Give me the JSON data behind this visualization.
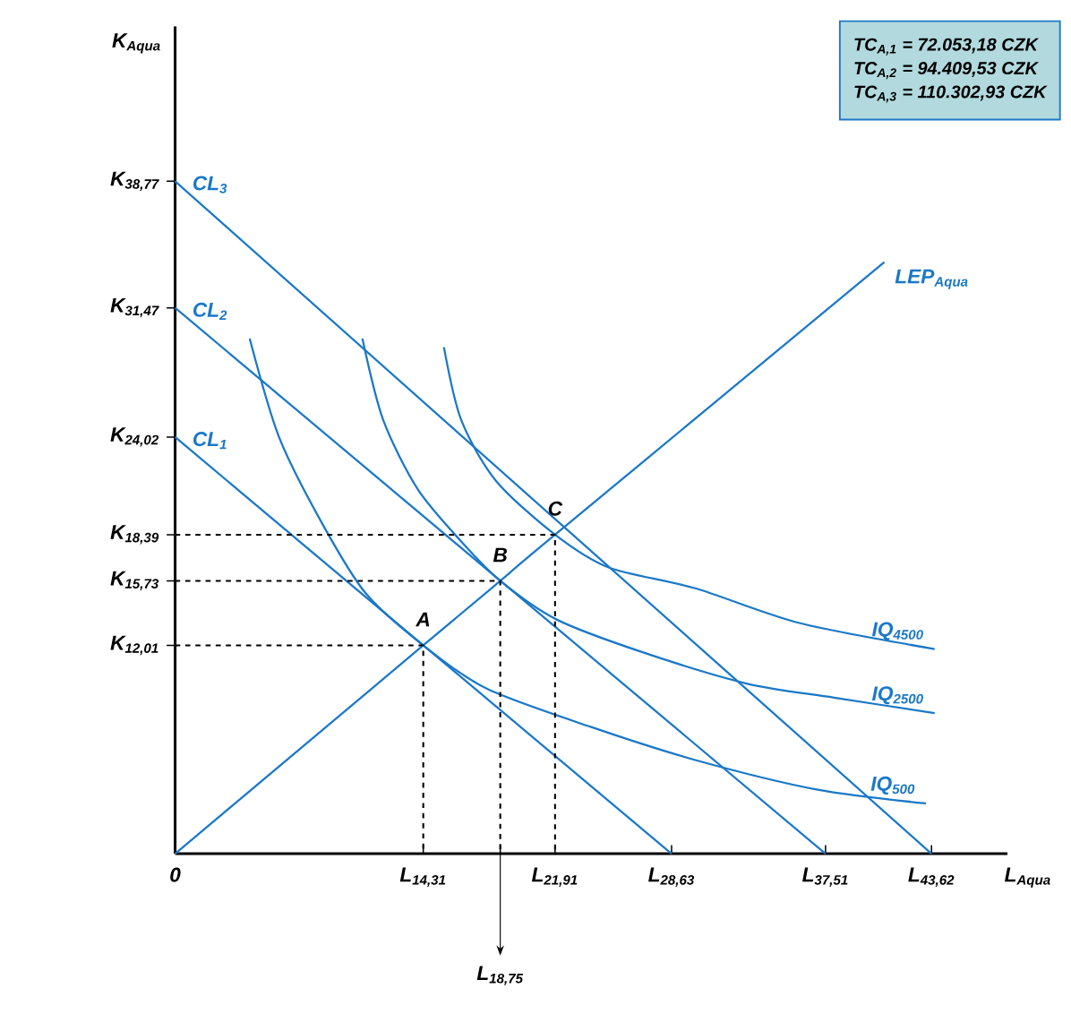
{
  "chart_data": {
    "type": "line",
    "xlabel": "L$_{Aqua}$",
    "ylabel": "K$_{Aqua}$",
    "xlim": [
      0,
      48
    ],
    "ylim": [
      0,
      47.7
    ],
    "xticks": [
      {
        "value": 0,
        "label": "0"
      },
      {
        "value": 14.31,
        "label": "L$_{14,31}$"
      },
      {
        "value": 18.75,
        "label": null
      },
      {
        "value": 21.91,
        "label": "L$_{21,91}$"
      },
      {
        "value": 28.63,
        "label": "L$_{28,63}$"
      },
      {
        "value": 37.51,
        "label": "L$_{37,51}$"
      },
      {
        "value": 43.62,
        "label": "L$_{43,62}$"
      }
    ],
    "yticks": [
      {
        "value": 12.01,
        "label": "K$_{12,01}$"
      },
      {
        "value": 15.73,
        "label": "K$_{15,73}$"
      },
      {
        "value": 18.39,
        "label": "K$_{18,39}$"
      },
      {
        "value": 24.02,
        "label": "K$_{24,02}$"
      },
      {
        "value": 31.47,
        "label": "K$_{31,47}$"
      },
      {
        "value": 38.77,
        "label": "K$_{38,77}$"
      }
    ],
    "series": [
      {
        "name": "CL$_{1}$",
        "color": "#1a78c8",
        "x": [
          0,
          28.63
        ],
        "values": [
          24.02,
          0
        ]
      },
      {
        "name": "CL$_{2}$",
        "color": "#1a78c8",
        "x": [
          0,
          37.51
        ],
        "values": [
          31.47,
          0
        ]
      },
      {
        "name": "CL$_{3}$",
        "color": "#1a78c8",
        "x": [
          0,
          43.62
        ],
        "values": [
          38.77,
          0
        ]
      },
      {
        "name": "LEP$_{Aqua}$",
        "color": "#1a78c8",
        "x": [
          0,
          14.31,
          18.75,
          21.91,
          40.9
        ],
        "values": [
          0,
          12.01,
          15.73,
          18.39,
          34.1
        ]
      },
      {
        "name": "IQ$_{500}$",
        "color": "#1a78c8",
        "x": [
          4.3,
          6,
          8.5,
          11,
          14.31,
          18,
          24,
          30,
          37,
          43.3
        ],
        "values": [
          29.7,
          24,
          19,
          15,
          12.01,
          9.5,
          7.3,
          5.4,
          3.7,
          2.9
        ]
      },
      {
        "name": "IQ$_{2500}$",
        "color": "#1a78c8",
        "x": [
          10.8,
          12,
          14,
          16.5,
          18.75,
          22,
          27,
          33,
          38,
          43.8
        ],
        "values": [
          29.7,
          25,
          21,
          18,
          15.73,
          13.5,
          11.6,
          9.8,
          9.0,
          8.1
        ]
      },
      {
        "name": "IQ$_{4500}$",
        "color": "#1a78c8",
        "x": [
          15.5,
          16.5,
          18.5,
          21.91,
          25,
          30,
          36,
          43.8
        ],
        "values": [
          29.2,
          25,
          21.5,
          18.39,
          16.5,
          15.3,
          13.3,
          11.8
        ]
      },
      {
        "color": "#000000",
        "line_style": "dashed",
        "x": [
          0,
          14.31,
          14.31
        ],
        "values": [
          12.01,
          12.01,
          0
        ]
      },
      {
        "color": "#000000",
        "line_style": "dashed",
        "x": [
          0,
          18.75,
          18.75
        ],
        "values": [
          15.73,
          15.73,
          0
        ]
      },
      {
        "color": "#000000",
        "line_style": "dashed",
        "x": [
          0,
          21.91,
          21.91
        ],
        "values": [
          18.39,
          18.39,
          0
        ]
      }
    ],
    "annotations": [
      {
        "text": "A",
        "x": 14.31,
        "y": 12.01
      },
      {
        "text": "B",
        "x": 18.75,
        "y": 15.73
      },
      {
        "text": "C",
        "x": 21.91,
        "y": 18.39
      },
      {
        "text": "L$_{18,75}$",
        "x": 18.75,
        "y": 0
      },
      "TC$_{A,1}$ = 72.053,18 CZK",
      "TC$_{A,2}$ = 94.409,53 CZK",
      "TC$_{A,3}$ = 110.302,93 CZK"
    ]
  }
}
